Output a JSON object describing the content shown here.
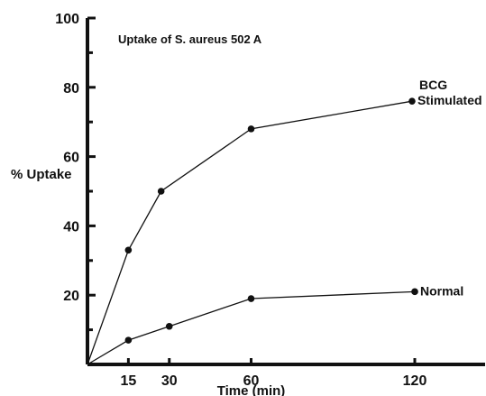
{
  "chart_data": {
    "type": "line",
    "title": "",
    "annotation": "Uptake of S. aureus 502 A",
    "xlabel": "Time (min)",
    "ylabel": "% Uptake",
    "xlim": [
      0,
      140
    ],
    "ylim": [
      0,
      100
    ],
    "x_ticks": [
      15,
      30,
      60,
      120
    ],
    "y_ticks": [
      20,
      40,
      60,
      80,
      100
    ],
    "grid": false,
    "legend": "none",
    "series": [
      {
        "label_lines": [
          "BCG",
          "Stimulated"
        ],
        "x": [
          0,
          15,
          27,
          60,
          119
        ],
        "y": [
          0,
          33,
          50,
          68,
          76
        ]
      },
      {
        "label_lines": [
          "Normal"
        ],
        "x": [
          0,
          15,
          30,
          60,
          120
        ],
        "y": [
          0,
          7,
          11,
          19,
          21
        ]
      }
    ]
  }
}
